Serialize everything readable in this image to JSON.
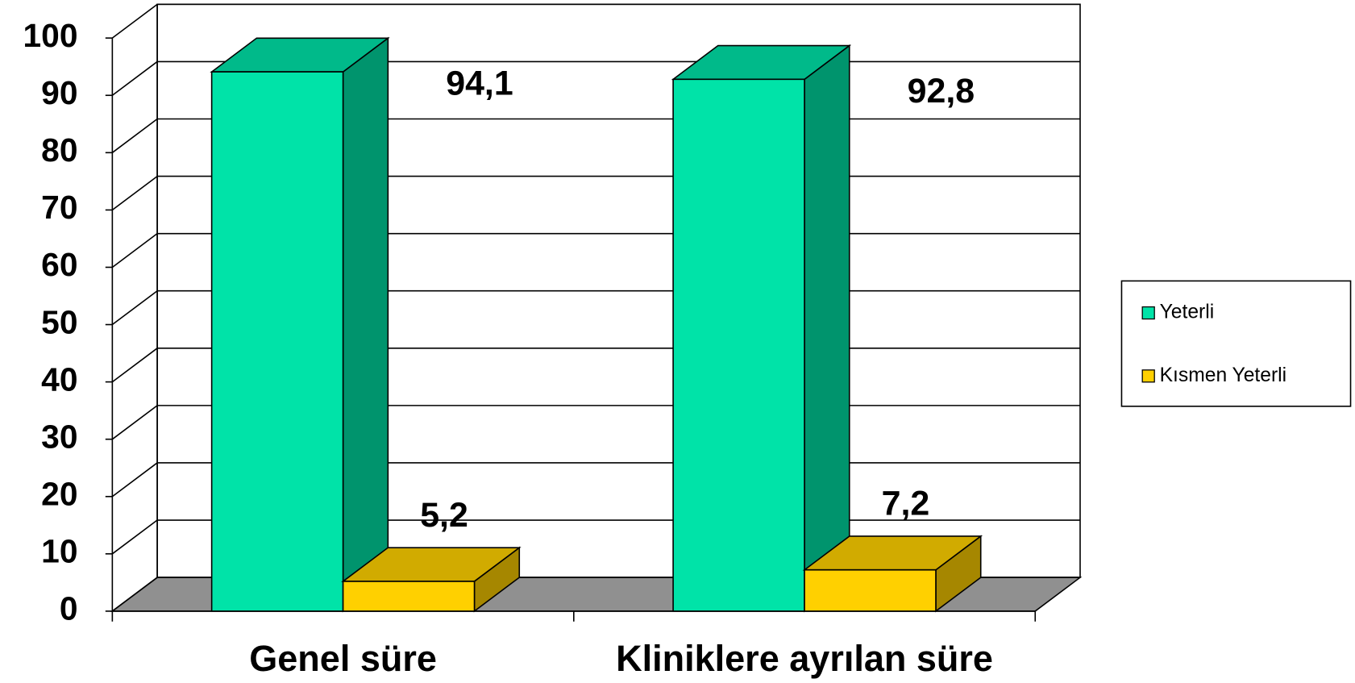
{
  "chart_data": {
    "type": "bar3d",
    "categories": [
      "Genel süre",
      "Kliniklere ayrılan süre"
    ],
    "series": [
      {
        "name": "Yeterli",
        "color": "#00E3A8",
        "values": [
          94.1,
          92.8
        ],
        "value_labels": [
          "94,1",
          "92,8"
        ]
      },
      {
        "name": "Kısmen Yeterli",
        "color": "#FFD000",
        "values": [
          5.2,
          7.2
        ],
        "value_labels": [
          "5,2",
          "7,2"
        ]
      }
    ],
    "ylim": [
      0,
      100
    ],
    "yticks": [
      0,
      10,
      20,
      30,
      40,
      50,
      60,
      70,
      80,
      90,
      100
    ],
    "grid": true,
    "legend": "right"
  }
}
